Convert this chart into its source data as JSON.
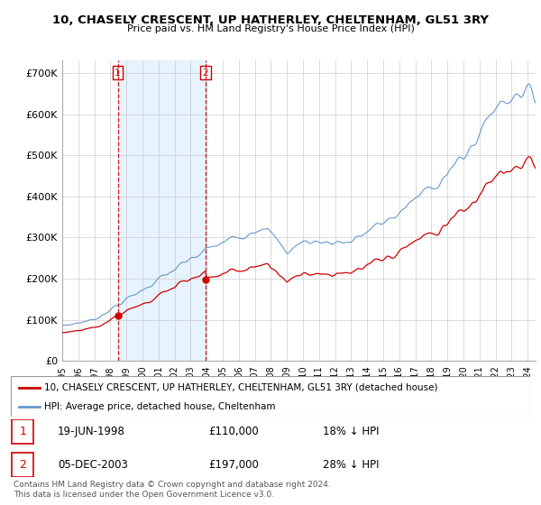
{
  "title": "10, CHASELY CRESCENT, UP HATHERLEY, CHELTENHAM, GL51 3RY",
  "subtitle": "Price paid vs. HM Land Registry's House Price Index (HPI)",
  "legend_line1": "10, CHASELY CRESCENT, UP HATHERLEY, CHELTENHAM, GL51 3RY (detached house)",
  "legend_line2": "HPI: Average price, detached house, Cheltenham",
  "footnote": "Contains HM Land Registry data © Crown copyright and database right 2024.\nThis data is licensed under the Open Government Licence v3.0.",
  "transaction1_label": "1",
  "transaction1_date": "19-JUN-1998",
  "transaction1_price": "£110,000",
  "transaction1_hpi": "18% ↓ HPI",
  "transaction2_label": "2",
  "transaction2_date": "05-DEC-2003",
  "transaction2_price": "£197,000",
  "transaction2_hpi": "28% ↓ HPI",
  "red_color": "#cc0000",
  "blue_color": "#6699cc",
  "blue_fill_color": "#ddeeff",
  "background_color": "#ffffff",
  "grid_color": "#cccccc",
  "ylim": [
    0,
    730000
  ],
  "yticks": [
    0,
    100000,
    200000,
    300000,
    400000,
    500000,
    600000,
    700000
  ],
  "ytick_labels": [
    "£0",
    "£100K",
    "£200K",
    "£300K",
    "£400K",
    "£500K",
    "£600K",
    "£700K"
  ],
  "transaction1_x": 1998.46,
  "transaction1_y": 110000,
  "transaction2_x": 2003.92,
  "transaction2_y": 197000,
  "xlim_start": 1995.0,
  "xlim_end": 2024.5,
  "xtick_years": [
    1995,
    1996,
    1997,
    1998,
    1999,
    2000,
    2001,
    2002,
    2003,
    2004,
    2005,
    2006,
    2007,
    2008,
    2009,
    2010,
    2011,
    2012,
    2013,
    2014,
    2015,
    2016,
    2017,
    2018,
    2019,
    2020,
    2021,
    2022,
    2023,
    2024
  ]
}
